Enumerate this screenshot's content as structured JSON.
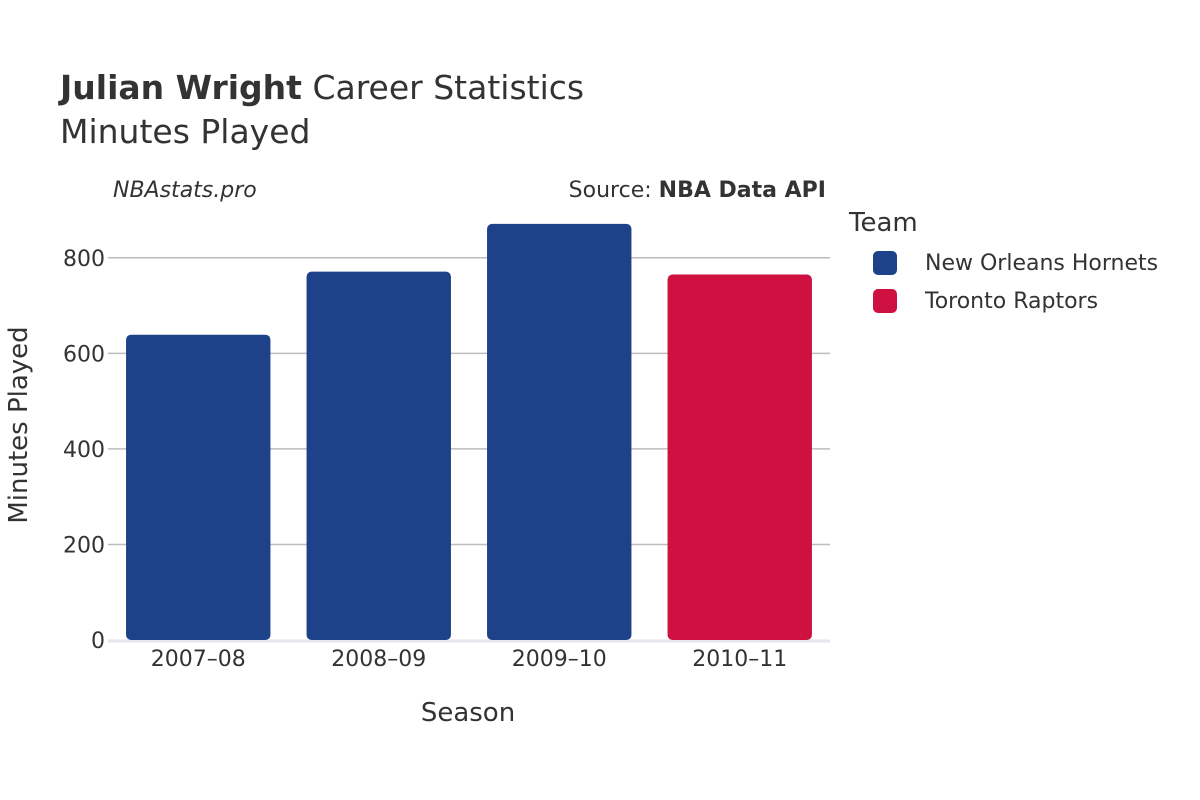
{
  "header": {
    "player_name": "Julian Wright",
    "title_suffix": "Career Statistics",
    "subtitle": "Minutes Played"
  },
  "watermark": "NBAstats.pro",
  "source": {
    "label": "Source:",
    "value": "NBA Data API"
  },
  "legend": {
    "title": "Team",
    "items": [
      {
        "label": "New Orleans Hornets",
        "color": "#1d428a"
      },
      {
        "label": "Toronto Raptors",
        "color": "#ce1141"
      }
    ]
  },
  "chart_data": {
    "type": "bar",
    "title": "Julian Wright Career Statistics",
    "subtitle": "Minutes Played",
    "xlabel": "Season",
    "ylabel": "Minutes Played",
    "ylim": [
      0,
      900
    ],
    "yticks": [
      0,
      200,
      400,
      600,
      800
    ],
    "grid": true,
    "legend_position": "right",
    "categories": [
      "2007–08",
      "2008–09",
      "2009–10",
      "2010–11"
    ],
    "values": [
      639,
      771,
      871,
      765
    ],
    "teams": [
      "New Orleans Hornets",
      "New Orleans Hornets",
      "New Orleans Hornets",
      "Toronto Raptors"
    ],
    "colors": [
      "#1d428a",
      "#1d428a",
      "#1d428a",
      "#ce1141"
    ]
  }
}
